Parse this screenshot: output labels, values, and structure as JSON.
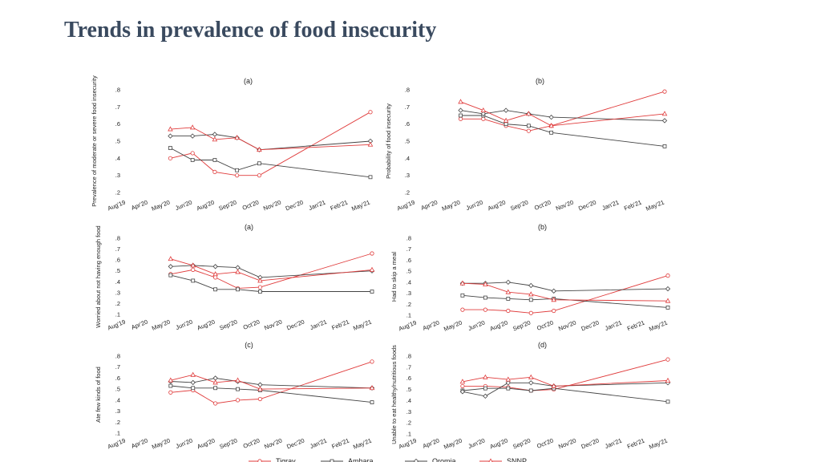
{
  "title": "Trends in prevalence of food insecurity",
  "colors": {
    "Tigray": "#e03c3c",
    "Amhara": "#444444",
    "Oromia": "#444444",
    "SNNP": "#e03c3c"
  },
  "legend": [
    "Tigray",
    "Amhara",
    "Oromia",
    "SNNP"
  ],
  "chart_data": [
    {
      "type": "line",
      "title": "(a)",
      "ylabel": "Prevalence of moderate or severe food insecurity",
      "categories": [
        "Aug'19",
        "Apr'20",
        "May'20",
        "Jun'20",
        "Aug'20",
        "Sep'20",
        "Oct'20",
        "Nov'20",
        "Dec'20",
        "Jan'21",
        "Feb'21",
        "May'21"
      ],
      "ylim": [
        0.2,
        0.8
      ],
      "yticks": [
        ".2",
        ".3",
        ".4",
        ".5",
        ".6",
        ".7",
        ".8"
      ],
      "series": [
        {
          "name": "Tigray",
          "x": [
            2,
            3,
            4,
            5,
            6,
            11
          ],
          "values": [
            0.4,
            0.43,
            0.32,
            0.3,
            0.3,
            0.67
          ]
        },
        {
          "name": "Amhara",
          "x": [
            2,
            3,
            4,
            5,
            6,
            11
          ],
          "values": [
            0.46,
            0.39,
            0.39,
            0.33,
            0.37,
            0.29
          ]
        },
        {
          "name": "Oromia",
          "x": [
            2,
            3,
            4,
            5,
            6,
            11
          ],
          "values": [
            0.53,
            0.53,
            0.54,
            0.52,
            0.45,
            0.5
          ]
        },
        {
          "name": "SNNP",
          "x": [
            2,
            3,
            4,
            5,
            6,
            11
          ],
          "values": [
            0.57,
            0.58,
            0.51,
            0.52,
            0.45,
            0.48
          ]
        }
      ]
    },
    {
      "type": "line",
      "title": "(b)",
      "ylabel": "Probability of food insecurity",
      "categories": [
        "Aug'19",
        "Apr'20",
        "May'20",
        "Jun'20",
        "Aug'20",
        "Sep'20",
        "Oct'20",
        "Nov'20",
        "Dec'20",
        "Jan'21",
        "Feb'21",
        "May'21"
      ],
      "ylim": [
        0.2,
        0.8
      ],
      "yticks": [
        ".2",
        ".3",
        ".4",
        ".5",
        ".6",
        ".7",
        ".8"
      ],
      "series": [
        {
          "name": "Tigray",
          "x": [
            2,
            3,
            4,
            5,
            6,
            11
          ],
          "values": [
            0.63,
            0.63,
            0.59,
            0.56,
            0.59,
            0.79
          ]
        },
        {
          "name": "Amhara",
          "x": [
            2,
            3,
            4,
            5,
            6,
            11
          ],
          "values": [
            0.65,
            0.65,
            0.6,
            0.59,
            0.55,
            0.47
          ]
        },
        {
          "name": "Oromia",
          "x": [
            2,
            3,
            4,
            5,
            6,
            11
          ],
          "values": [
            0.68,
            0.66,
            0.68,
            0.66,
            0.64,
            0.62
          ]
        },
        {
          "name": "SNNP",
          "x": [
            2,
            3,
            4,
            5,
            6,
            11
          ],
          "values": [
            0.73,
            0.68,
            0.62,
            0.66,
            0.59,
            0.66
          ]
        }
      ]
    },
    {
      "type": "line",
      "title": "(a)",
      "ylabel": "Worried about not having enough food",
      "categories": [
        "Aug'19",
        "Apr'20",
        "May'20",
        "Jun'20",
        "Aug'20",
        "Sep'20",
        "Oct'20",
        "Nov'20",
        "Dec'20",
        "Jan'21",
        "Feb'21",
        "May'21"
      ],
      "ylim": [
        0.1,
        0.8
      ],
      "yticks": [
        ".1",
        ".2",
        ".3",
        ".4",
        ".5",
        ".6",
        ".7",
        ".8"
      ],
      "series": [
        {
          "name": "Tigray",
          "x": [
            2,
            3,
            4,
            5,
            6,
            11
          ],
          "values": [
            0.47,
            0.51,
            0.44,
            0.34,
            0.35,
            0.66
          ]
        },
        {
          "name": "Amhara",
          "x": [
            2,
            3,
            4,
            5,
            6,
            11
          ],
          "values": [
            0.46,
            0.41,
            0.33,
            0.33,
            0.31,
            0.31
          ]
        },
        {
          "name": "Oromia",
          "x": [
            2,
            3,
            4,
            5,
            6,
            11
          ],
          "values": [
            0.54,
            0.55,
            0.54,
            0.53,
            0.44,
            0.5
          ]
        },
        {
          "name": "SNNP",
          "x": [
            2,
            3,
            4,
            5,
            6,
            11
          ],
          "values": [
            0.61,
            0.55,
            0.47,
            0.49,
            0.41,
            0.51
          ]
        }
      ]
    },
    {
      "type": "line",
      "title": "(b)",
      "ylabel": "Had to skip a meal",
      "categories": [
        "Aug'19",
        "Apr'20",
        "May'20",
        "Jun'20",
        "Aug'20",
        "Sep'20",
        "Oct'20",
        "Nov'20",
        "Dec'20",
        "Jan'21",
        "Feb'21",
        "May'21"
      ],
      "ylim": [
        0.1,
        0.8
      ],
      "yticks": [
        ".1",
        ".2",
        ".3",
        ".4",
        ".5",
        ".6",
        ".7",
        ".8"
      ],
      "series": [
        {
          "name": "Tigray",
          "x": [
            2,
            3,
            4,
            5,
            6,
            11
          ],
          "values": [
            0.15,
            0.15,
            0.14,
            0.12,
            0.14,
            0.46
          ]
        },
        {
          "name": "Amhara",
          "x": [
            2,
            3,
            4,
            5,
            6,
            11
          ],
          "values": [
            0.28,
            0.26,
            0.25,
            0.24,
            0.25,
            0.17
          ]
        },
        {
          "name": "Oromia",
          "x": [
            2,
            3,
            4,
            5,
            6,
            11
          ],
          "values": [
            0.39,
            0.39,
            0.4,
            0.37,
            0.32,
            0.34
          ]
        },
        {
          "name": "SNNP",
          "x": [
            2,
            3,
            4,
            5,
            6,
            11
          ],
          "values": [
            0.39,
            0.38,
            0.31,
            0.29,
            0.24,
            0.23
          ]
        }
      ]
    },
    {
      "type": "line",
      "title": "(c)",
      "ylabel": "Ate few kinds of food",
      "categories": [
        "Aug'19",
        "Apr'20",
        "May'20",
        "Jun'20",
        "Aug'20",
        "Sep'20",
        "Oct'20",
        "Nov'20",
        "Dec'20",
        "Jan'21",
        "Feb'21",
        "May'21"
      ],
      "ylim": [
        0.1,
        0.8
      ],
      "yticks": [
        ".1",
        ".2",
        ".3",
        ".4",
        ".5",
        ".6",
        ".7",
        ".8"
      ],
      "series": [
        {
          "name": "Tigray",
          "x": [
            2,
            3,
            4,
            5,
            6,
            11
          ],
          "values": [
            0.47,
            0.49,
            0.37,
            0.4,
            0.41,
            0.75
          ]
        },
        {
          "name": "Amhara",
          "x": [
            2,
            3,
            4,
            5,
            6,
            11
          ],
          "values": [
            0.53,
            0.51,
            0.51,
            0.5,
            0.49,
            0.38
          ]
        },
        {
          "name": "Oromia",
          "x": [
            2,
            3,
            4,
            5,
            6,
            11
          ],
          "values": [
            0.57,
            0.56,
            0.6,
            0.57,
            0.54,
            0.51
          ]
        },
        {
          "name": "SNNP",
          "x": [
            2,
            3,
            4,
            5,
            6,
            11
          ],
          "values": [
            0.58,
            0.63,
            0.56,
            0.58,
            0.5,
            0.51
          ]
        }
      ]
    },
    {
      "type": "line",
      "title": "(d)",
      "ylabel": "Unable to eat healthy/nutritious foods",
      "categories": [
        "Aug'19",
        "Apr'20",
        "May'20",
        "Jun'20",
        "Aug'20",
        "Sep'20",
        "Oct'20",
        "Nov'20",
        "Dec'20",
        "Jan'21",
        "Feb'21",
        "May'21"
      ],
      "ylim": [
        0.1,
        0.8
      ],
      "yticks": [
        ".1",
        ".2",
        ".3",
        ".4",
        ".5",
        ".6",
        ".7",
        ".8"
      ],
      "series": [
        {
          "name": "Tigray",
          "x": [
            2,
            3,
            4,
            5,
            6,
            11
          ],
          "values": [
            0.53,
            0.53,
            0.52,
            0.49,
            0.5,
            0.77
          ]
        },
        {
          "name": "Amhara",
          "x": [
            2,
            3,
            4,
            5,
            6,
            11
          ],
          "values": [
            0.49,
            0.51,
            0.51,
            0.49,
            0.51,
            0.39
          ]
        },
        {
          "name": "Oromia",
          "x": [
            2,
            3,
            4,
            5,
            6,
            11
          ],
          "values": [
            0.48,
            0.44,
            0.56,
            0.56,
            0.53,
            0.56
          ]
        },
        {
          "name": "SNNP",
          "x": [
            2,
            3,
            4,
            5,
            6,
            11
          ],
          "values": [
            0.57,
            0.61,
            0.59,
            0.61,
            0.53,
            0.58
          ]
        }
      ]
    }
  ]
}
